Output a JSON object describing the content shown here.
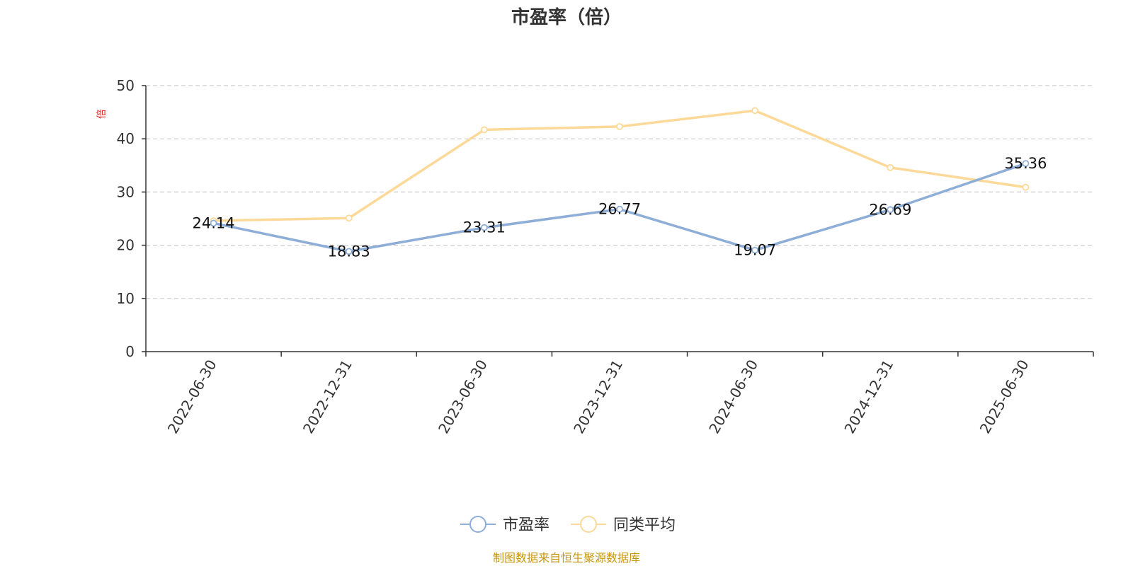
{
  "chart_data": {
    "type": "line",
    "title": "市盈率（倍）",
    "ylabel": "倍",
    "xlabel": "",
    "categories": [
      "2022-06-30",
      "2022-12-31",
      "2023-06-30",
      "2023-12-31",
      "2024-06-30",
      "2024-12-31",
      "2025-06-30"
    ],
    "yticks": [
      "0",
      "10",
      "20",
      "30",
      "40",
      "50"
    ],
    "ylim": [
      0,
      50
    ],
    "grid": true,
    "legend_position": "bottom",
    "series": [
      {
        "name": "市盈率",
        "color": "#8eaed8",
        "values": [
          24.14,
          18.83,
          23.31,
          26.77,
          19.07,
          26.69,
          35.36
        ],
        "labels": [
          "24.14",
          "18.83",
          "23.31",
          "26.77",
          "19.07",
          "26.69",
          "35.36"
        ]
      },
      {
        "name": "同类平均",
        "color": "#fcd998",
        "values": [
          24.6,
          25.1,
          41.7,
          42.3,
          45.3,
          34.6,
          30.9
        ]
      }
    ]
  },
  "colors": {
    "unit_label": "#e02020",
    "source_text": "#c8960a",
    "axis": "#333333",
    "grid": "#cccccc"
  },
  "footer": {
    "source": "制图数据来自恒生聚源数据库"
  }
}
